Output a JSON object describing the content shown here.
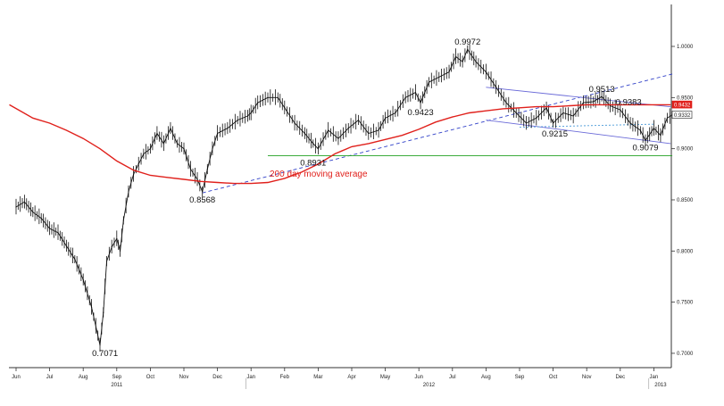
{
  "chart_data": {
    "type": "line",
    "title": "",
    "y_ticks": [
      "0.7000",
      "0.7500",
      "0.8000",
      "0.8500",
      "0.9000",
      "0.9500",
      "1.0000"
    ],
    "ylim": [
      0.686,
      1.041
    ],
    "x_months": [
      "Jun",
      "Jul",
      "Aug",
      "Sep",
      "Oct",
      "Nov",
      "Dec",
      "Jan",
      "Feb",
      "Mar",
      "Apr",
      "May",
      "Jun",
      "Jul",
      "Aug",
      "Sep",
      "Oct",
      "Nov",
      "Dec",
      "Jan"
    ],
    "x_years": [
      "2011",
      "2012",
      "2013"
    ],
    "price_labels": [
      {
        "text": "0.7071",
        "x": 2.65,
        "y": 0.7071
      },
      {
        "text": "0.8568",
        "x": 5.55,
        "y": 0.8568
      },
      {
        "text": "0.8931",
        "x": 8.85,
        "y": 0.8931
      },
      {
        "text": "0.9423",
        "x": 12.05,
        "y": 0.9423
      },
      {
        "text": "0.9972",
        "x": 13.45,
        "y": 0.9972
      },
      {
        "text": "0.9513",
        "x": 17.45,
        "y": 0.9513
      },
      {
        "text": "0.9383",
        "x": 18.25,
        "y": 0.9383
      },
      {
        "text": "0.9215",
        "x": 16.05,
        "y": 0.9215
      },
      {
        "text": "0.9079",
        "x": 18.75,
        "y": 0.9079
      }
    ],
    "last_price_tags": [
      {
        "text": "0.9432",
        "value": 0.9432,
        "color": "#e0201b"
      },
      {
        "text": "0.9332",
        "value": 0.9332,
        "color": "#222222"
      }
    ],
    "price_series": {
      "name": "",
      "x": [
        0,
        0.25,
        0.5,
        0.75,
        1,
        1.25,
        1.5,
        1.75,
        2,
        2.25,
        2.5,
        2.6,
        2.7,
        2.85,
        3,
        3.1,
        3.2,
        3.35,
        3.5,
        3.65,
        3.8,
        4,
        4.2,
        4.4,
        4.6,
        4.8,
        5,
        5.2,
        5.4,
        5.55,
        5.7,
        5.85,
        6,
        6.3,
        6.6,
        6.9,
        7,
        7.2,
        7.5,
        7.8,
        8,
        8.3,
        8.6,
        8.85,
        9,
        9.3,
        9.6,
        9.9,
        10.2,
        10.5,
        10.8,
        11,
        11.3,
        11.6,
        11.9,
        12.05,
        12.3,
        12.6,
        12.9,
        13.1,
        13.3,
        13.45,
        13.7,
        14,
        14.3,
        14.6,
        14.9,
        15.2,
        15.5,
        15.8,
        16,
        16.3,
        16.6,
        16.9,
        17.2,
        17.45,
        17.7,
        18,
        18.3,
        18.6,
        18.75,
        19,
        19.2,
        19.4,
        19.55
      ],
      "y": [
        0.843,
        0.848,
        0.838,
        0.832,
        0.822,
        0.818,
        0.805,
        0.792,
        0.772,
        0.745,
        0.708,
        0.74,
        0.79,
        0.804,
        0.812,
        0.8,
        0.83,
        0.858,
        0.875,
        0.885,
        0.895,
        0.9,
        0.915,
        0.905,
        0.92,
        0.905,
        0.9,
        0.88,
        0.87,
        0.858,
        0.88,
        0.9,
        0.915,
        0.92,
        0.928,
        0.932,
        0.935,
        0.945,
        0.95,
        0.95,
        0.94,
        0.925,
        0.915,
        0.905,
        0.9,
        0.918,
        0.91,
        0.92,
        0.928,
        0.915,
        0.918,
        0.93,
        0.935,
        0.95,
        0.955,
        0.945,
        0.965,
        0.97,
        0.975,
        0.99,
        0.985,
        0.997,
        0.985,
        0.975,
        0.96,
        0.945,
        0.935,
        0.925,
        0.93,
        0.94,
        0.925,
        0.935,
        0.932,
        0.945,
        0.946,
        0.951,
        0.942,
        0.938,
        0.925,
        0.918,
        0.908,
        0.92,
        0.913,
        0.93,
        0.933
      ]
    },
    "moving_average": {
      "name": "200 day moving average",
      "x": [
        -0.2,
        0.5,
        1,
        1.5,
        2,
        2.5,
        3,
        3.5,
        4,
        4.5,
        5,
        5.5,
        6,
        6.5,
        7,
        7.5,
        8,
        8.5,
        9,
        9.5,
        10,
        10.5,
        11,
        11.5,
        12,
        12.5,
        13,
        13.5,
        14,
        14.5,
        15,
        15.5,
        16,
        16.5,
        17,
        17.5,
        18,
        18.5,
        19,
        19.5
      ],
      "y": [
        0.943,
        0.93,
        0.925,
        0.918,
        0.91,
        0.9,
        0.888,
        0.879,
        0.874,
        0.872,
        0.87,
        0.868,
        0.867,
        0.866,
        0.866,
        0.867,
        0.871,
        0.877,
        0.885,
        0.895,
        0.902,
        0.905,
        0.909,
        0.913,
        0.919,
        0.926,
        0.931,
        0.935,
        0.937,
        0.939,
        0.94,
        0.941,
        0.941,
        0.942,
        0.943,
        0.943,
        0.943,
        0.943,
        0.943,
        0.943
      ]
    },
    "trendlines": [
      {
        "name": "",
        "color": "#3040c8",
        "dash": "4,3",
        "x": [
          5.55,
          19.55
        ],
        "y": [
          0.8568,
          0.973
        ]
      },
      {
        "name": "",
        "color": "#20a020",
        "dash": "",
        "x": [
          7.5,
          19.55
        ],
        "y": [
          0.8931,
          0.8931
        ]
      },
      {
        "name": "",
        "color": "#6a6ad8",
        "dash": "",
        "x": [
          14,
          19.5
        ],
        "y": [
          0.96,
          0.941
        ]
      },
      {
        "name": "",
        "color": "#6a6ad8",
        "dash": "",
        "x": [
          14,
          19.5
        ],
        "y": [
          0.928,
          0.905
        ]
      },
      {
        "name": "",
        "color": "#4a9ad8",
        "dash": "2,2",
        "x": [
          15,
          19
        ],
        "y": [
          0.921,
          0.924
        ]
      }
    ],
    "xlabel": "",
    "ylabel": "",
    "legend": "none",
    "grid": false
  }
}
